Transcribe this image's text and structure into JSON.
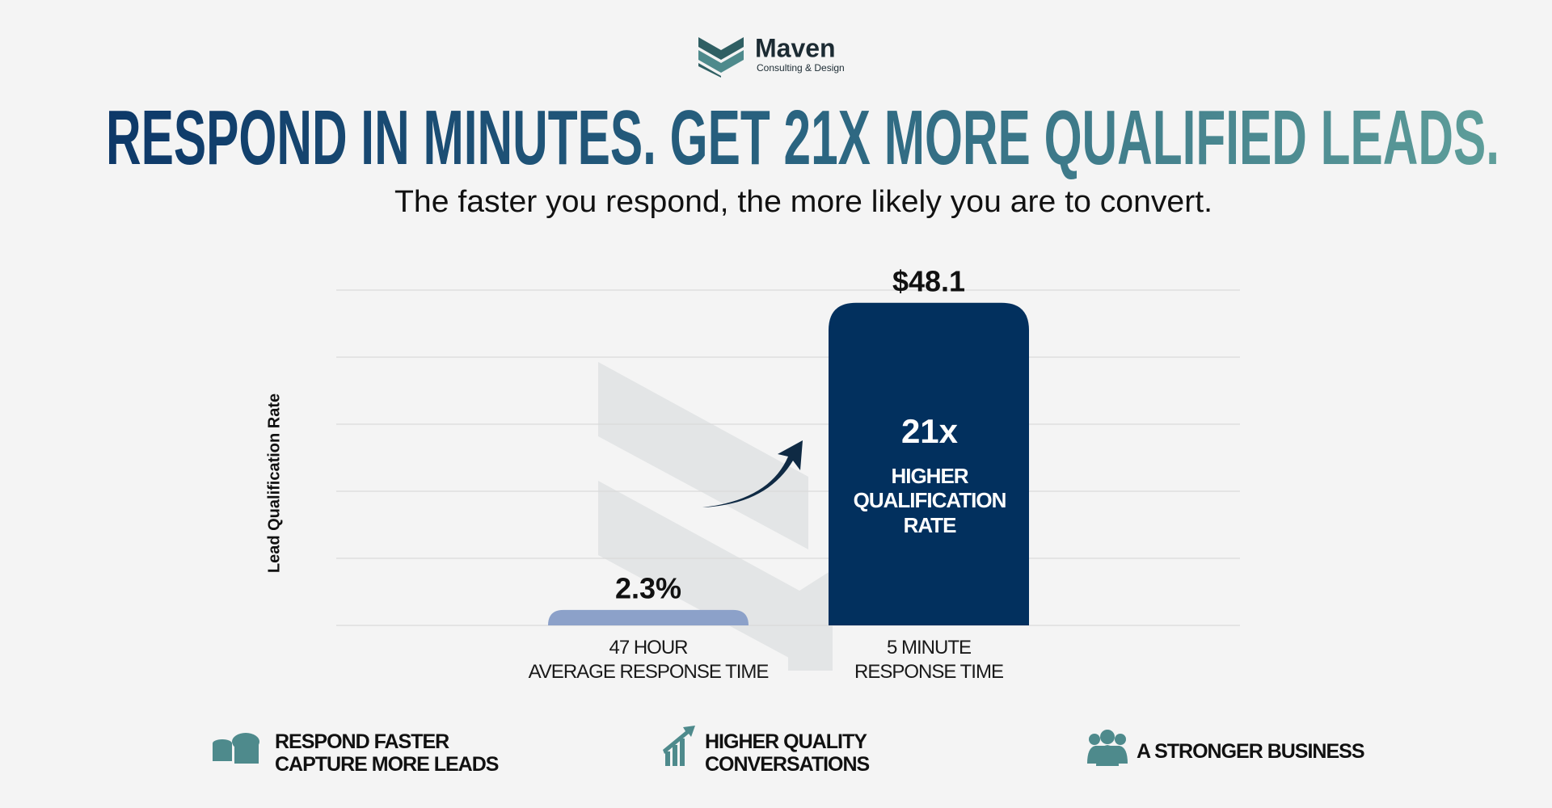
{
  "header": {
    "brand": "Maven",
    "tagline": "Consulting & Design"
  },
  "chart_data": {
    "type": "bar",
    "title": "RESPOND IN MINUTES. GET 21X MORE QUALIFIED LEADS.",
    "subtitle": "The faster you respond, the more likely you are to convert.",
    "ylabel": "Lead Qualification Rate",
    "categories": [
      "47 HOUR\nAVERAGE RESPONSE TIME",
      "5 MINUTE\nRESPONSE TIME"
    ],
    "values": [
      2.3,
      48.1
    ],
    "value_labels": [
      "2.3%",
      "$48.1"
    ],
    "colors": [
      "#8ca1c9",
      "#02305e"
    ],
    "ylim": [
      0,
      50
    ],
    "yticks": [
      0,
      10,
      20,
      30,
      40,
      50
    ],
    "grid": true,
    "annotations": [
      "21x",
      "HIGHER\nQUALIFICATION\nRATE"
    ]
  },
  "footer": {
    "items": [
      "RESPOND FASTER\nCAPTURE MORE LEADS",
      "HIGHER QUALITY\nCONVERSATIONS",
      "A STRONGER BUSINESS"
    ]
  }
}
